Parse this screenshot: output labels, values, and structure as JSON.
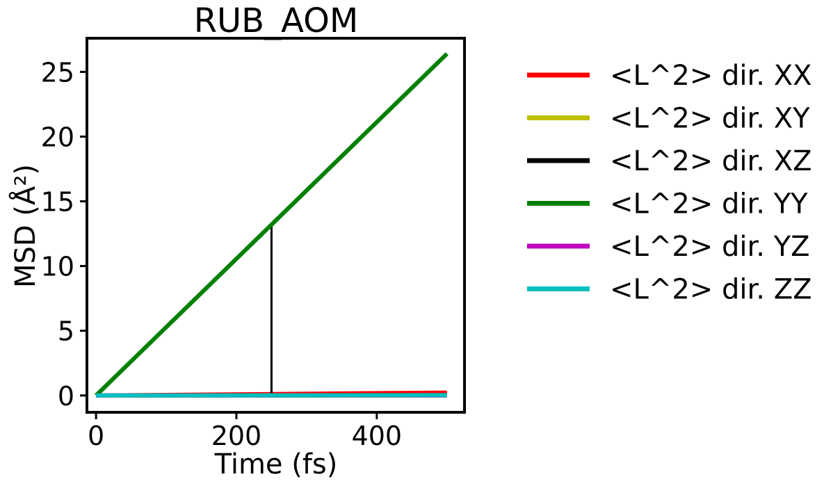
{
  "chart_data": {
    "type": "line",
    "title": "RUB_AOM",
    "xlabel": "Time (fs)",
    "ylabel": "MSD (Å²)",
    "xlim": [
      -13,
      525
    ],
    "ylim": [
      -1.3,
      27.6
    ],
    "x_ticks": [
      0,
      200,
      400
    ],
    "y_ticks": [
      0,
      5,
      10,
      15,
      20,
      25
    ],
    "grid": false,
    "legend_placement": "outside-right",
    "series": [
      {
        "name": "<L^2> dir. XX",
        "color": "#ff0000",
        "x": [
          0,
          500
        ],
        "y": [
          0.0,
          0.22
        ]
      },
      {
        "name": "<L^2> dir. XY",
        "color": "#bfbf00",
        "x": [
          0,
          500
        ],
        "y": [
          0.0,
          0.0
        ]
      },
      {
        "name": "<L^2> dir. XZ",
        "color": "#000000",
        "x": [
          0,
          250,
          250,
          500
        ],
        "y": [
          0.0,
          0.0,
          13.2,
          26.4
        ]
      },
      {
        "name": "<L^2> dir. YY",
        "color": "#008000",
        "x": [
          0,
          500
        ],
        "y": [
          0.0,
          26.4
        ]
      },
      {
        "name": "<L^2> dir. YZ",
        "color": "#bf00bf",
        "x": [
          0,
          500
        ],
        "y": [
          0.0,
          0.0
        ]
      },
      {
        "name": "<L^2> dir. ZZ",
        "color": "#00bfbf",
        "x": [
          0,
          500
        ],
        "y": [
          0.0,
          0.02
        ]
      }
    ]
  }
}
